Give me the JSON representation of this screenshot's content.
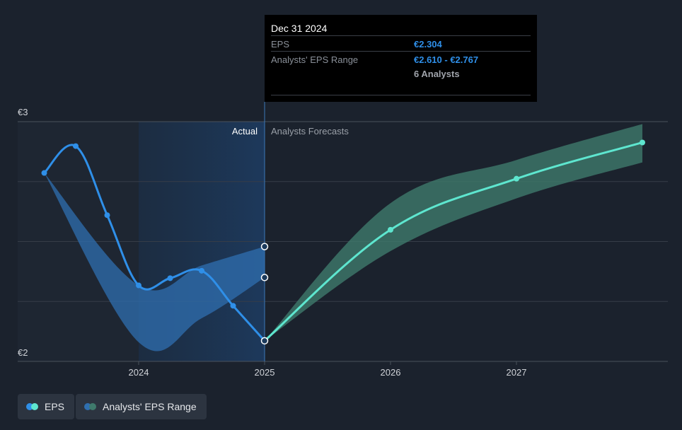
{
  "tooltip": {
    "date": "Dec 31 2024",
    "eps_label": "EPS",
    "eps_value": "€2.304",
    "range_label": "Analysts' EPS Range",
    "range_value": "€2.610 - €2.767",
    "analysts": "6 Analysts"
  },
  "legend": {
    "eps_label": "EPS",
    "range_label": "Analysts' EPS Range"
  },
  "colors": {
    "background": "#1b222d",
    "eps_actual": "#2f8fe8",
    "eps_forecast": "#5ee6cf",
    "range_actual": "#2f6fb0",
    "range_forecast": "#3f7a6c"
  },
  "chart_data": {
    "type": "line",
    "section_labels": {
      "actual": "Actual",
      "forecast": "Analysts Forecasts"
    },
    "y_tick_labels": [
      "€3",
      "€2"
    ],
    "y_ticks": [
      3,
      2
    ],
    "ylim": [
      2,
      3
    ],
    "x_ticks": [
      {
        "label": "2024",
        "x": 2024.0
      },
      {
        "label": "2025",
        "x": 2025.0
      },
      {
        "label": "2026",
        "x": 2026.0
      },
      {
        "label": "2027",
        "x": 2027.0
      }
    ],
    "xlim": [
      2022.9,
      2028.2
    ],
    "highlight_range": [
      2024.0,
      2025.0
    ],
    "divider_x": 2025.0,
    "series": [
      {
        "name": "EPS",
        "role": "actual",
        "points": [
          {
            "x": 2023.25,
            "y": 2.786
          },
          {
            "x": 2023.5,
            "y": 2.898
          },
          {
            "x": 2023.75,
            "y": 2.61
          },
          {
            "x": 2024.0,
            "y": 2.317
          },
          {
            "x": 2024.25,
            "y": 2.347
          },
          {
            "x": 2024.5,
            "y": 2.378
          },
          {
            "x": 2024.75,
            "y": 2.232
          },
          {
            "x": 2025.0,
            "y": 2.086
          }
        ]
      },
      {
        "name": "EPS",
        "role": "forecast",
        "points": [
          {
            "x": 2025.0,
            "y": 2.086
          },
          {
            "x": 2026.0,
            "y": 2.549
          },
          {
            "x": 2027.0,
            "y": 2.762
          },
          {
            "x": 2028.0,
            "y": 2.913
          }
        ]
      }
    ],
    "range_actual": {
      "name": "Analysts' EPS Range",
      "upper": [
        {
          "x": 2023.25,
          "y": 2.786
        },
        {
          "x": 2024.0,
          "y": 2.317
        },
        {
          "x": 2024.5,
          "y": 2.4
        },
        {
          "x": 2025.0,
          "y": 2.479
        }
      ],
      "lower": [
        {
          "x": 2023.25,
          "y": 2.786
        },
        {
          "x": 2024.0,
          "y": 2.08
        },
        {
          "x": 2024.5,
          "y": 2.18
        },
        {
          "x": 2025.0,
          "y": 2.35
        }
      ],
      "end_markers": [
        2.479,
        2.35
      ]
    },
    "range_forecast": {
      "name": "Analysts' EPS Range",
      "upper": [
        {
          "x": 2025.0,
          "y": 2.086
        },
        {
          "x": 2026.0,
          "y": 2.66
        },
        {
          "x": 2027.0,
          "y": 2.84
        },
        {
          "x": 2028.0,
          "y": 2.99
        }
      ],
      "lower": [
        {
          "x": 2025.0,
          "y": 2.086
        },
        {
          "x": 2026.0,
          "y": 2.46
        },
        {
          "x": 2027.0,
          "y": 2.68
        },
        {
          "x": 2028.0,
          "y": 2.83
        }
      ]
    }
  }
}
